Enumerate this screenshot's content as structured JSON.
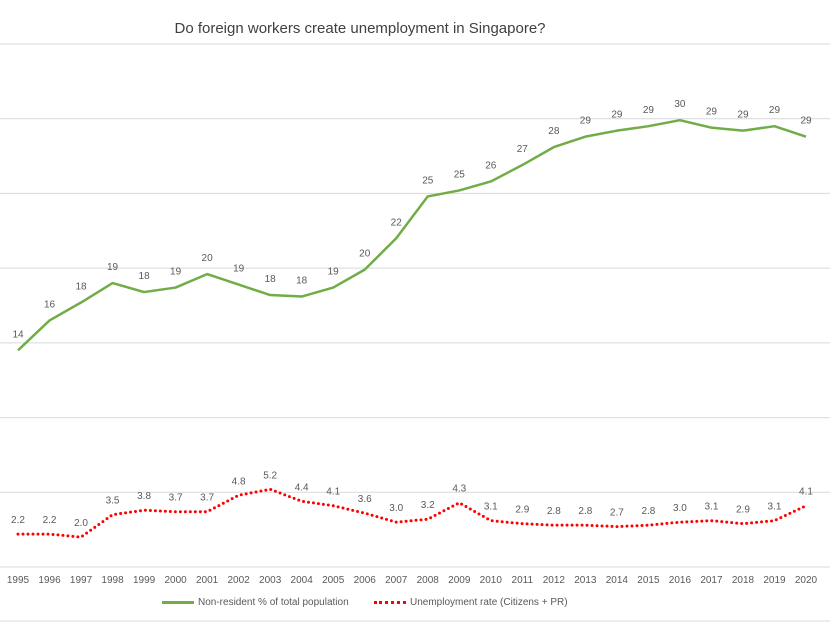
{
  "chart_data": {
    "type": "line",
    "title": "Do foreign workers create unemployment in Singapore?",
    "xlabel": "",
    "ylabel": "",
    "ylim": [
      0,
      35
    ],
    "grid": true,
    "legend_position": "bottom",
    "categories": [
      "1995",
      "1996",
      "1997",
      "1998",
      "1999",
      "2000",
      "2001",
      "2002",
      "2003",
      "2004",
      "2005",
      "2006",
      "2007",
      "2008",
      "2009",
      "2010",
      "2011",
      "2012",
      "2013",
      "2014",
      "2015",
      "2016",
      "2017",
      "2018",
      "2019",
      "2020"
    ],
    "series": [
      {
        "name": "Non-resident % of total population",
        "color": "#70ad47",
        "style": "solid",
        "values": [
          14.5,
          16.5,
          17.7,
          19.0,
          18.4,
          18.7,
          19.6,
          18.9,
          18.2,
          18.1,
          18.7,
          19.9,
          22.0,
          24.8,
          25.2,
          25.8,
          26.9,
          28.1,
          28.8,
          29.2,
          29.5,
          29.9,
          29.4,
          29.2,
          29.5,
          28.8
        ],
        "labels": [
          "14",
          "16",
          "18",
          "19",
          "18",
          "19",
          "20",
          "19",
          "18",
          "18",
          "19",
          "20",
          "22",
          "25",
          "25",
          "26",
          "27",
          "28",
          "29",
          "29",
          "29",
          "30",
          "29",
          "29",
          "29",
          "29"
        ]
      },
      {
        "name": "Unemployment rate (Citizens + PR)",
        "color": "#ff0000",
        "style": "dotted",
        "values": [
          2.2,
          2.2,
          2.0,
          3.5,
          3.8,
          3.7,
          3.7,
          4.8,
          5.2,
          4.4,
          4.1,
          3.6,
          3.0,
          3.2,
          4.3,
          3.1,
          2.9,
          2.8,
          2.8,
          2.7,
          2.8,
          3.0,
          3.1,
          2.9,
          3.1,
          4.1
        ],
        "labels": [
          "2.2",
          "2.2",
          "2.0",
          "3.5",
          "3.8",
          "3.7",
          "3.7",
          "4.8",
          "5.2",
          "4.4",
          "4.1",
          "3.6",
          "3.0",
          "3.2",
          "4.3",
          "3.1",
          "2.9",
          "2.8",
          "2.8",
          "2.7",
          "2.8",
          "3.0",
          "3.1",
          "2.9",
          "3.1",
          "4.1"
        ]
      }
    ]
  }
}
